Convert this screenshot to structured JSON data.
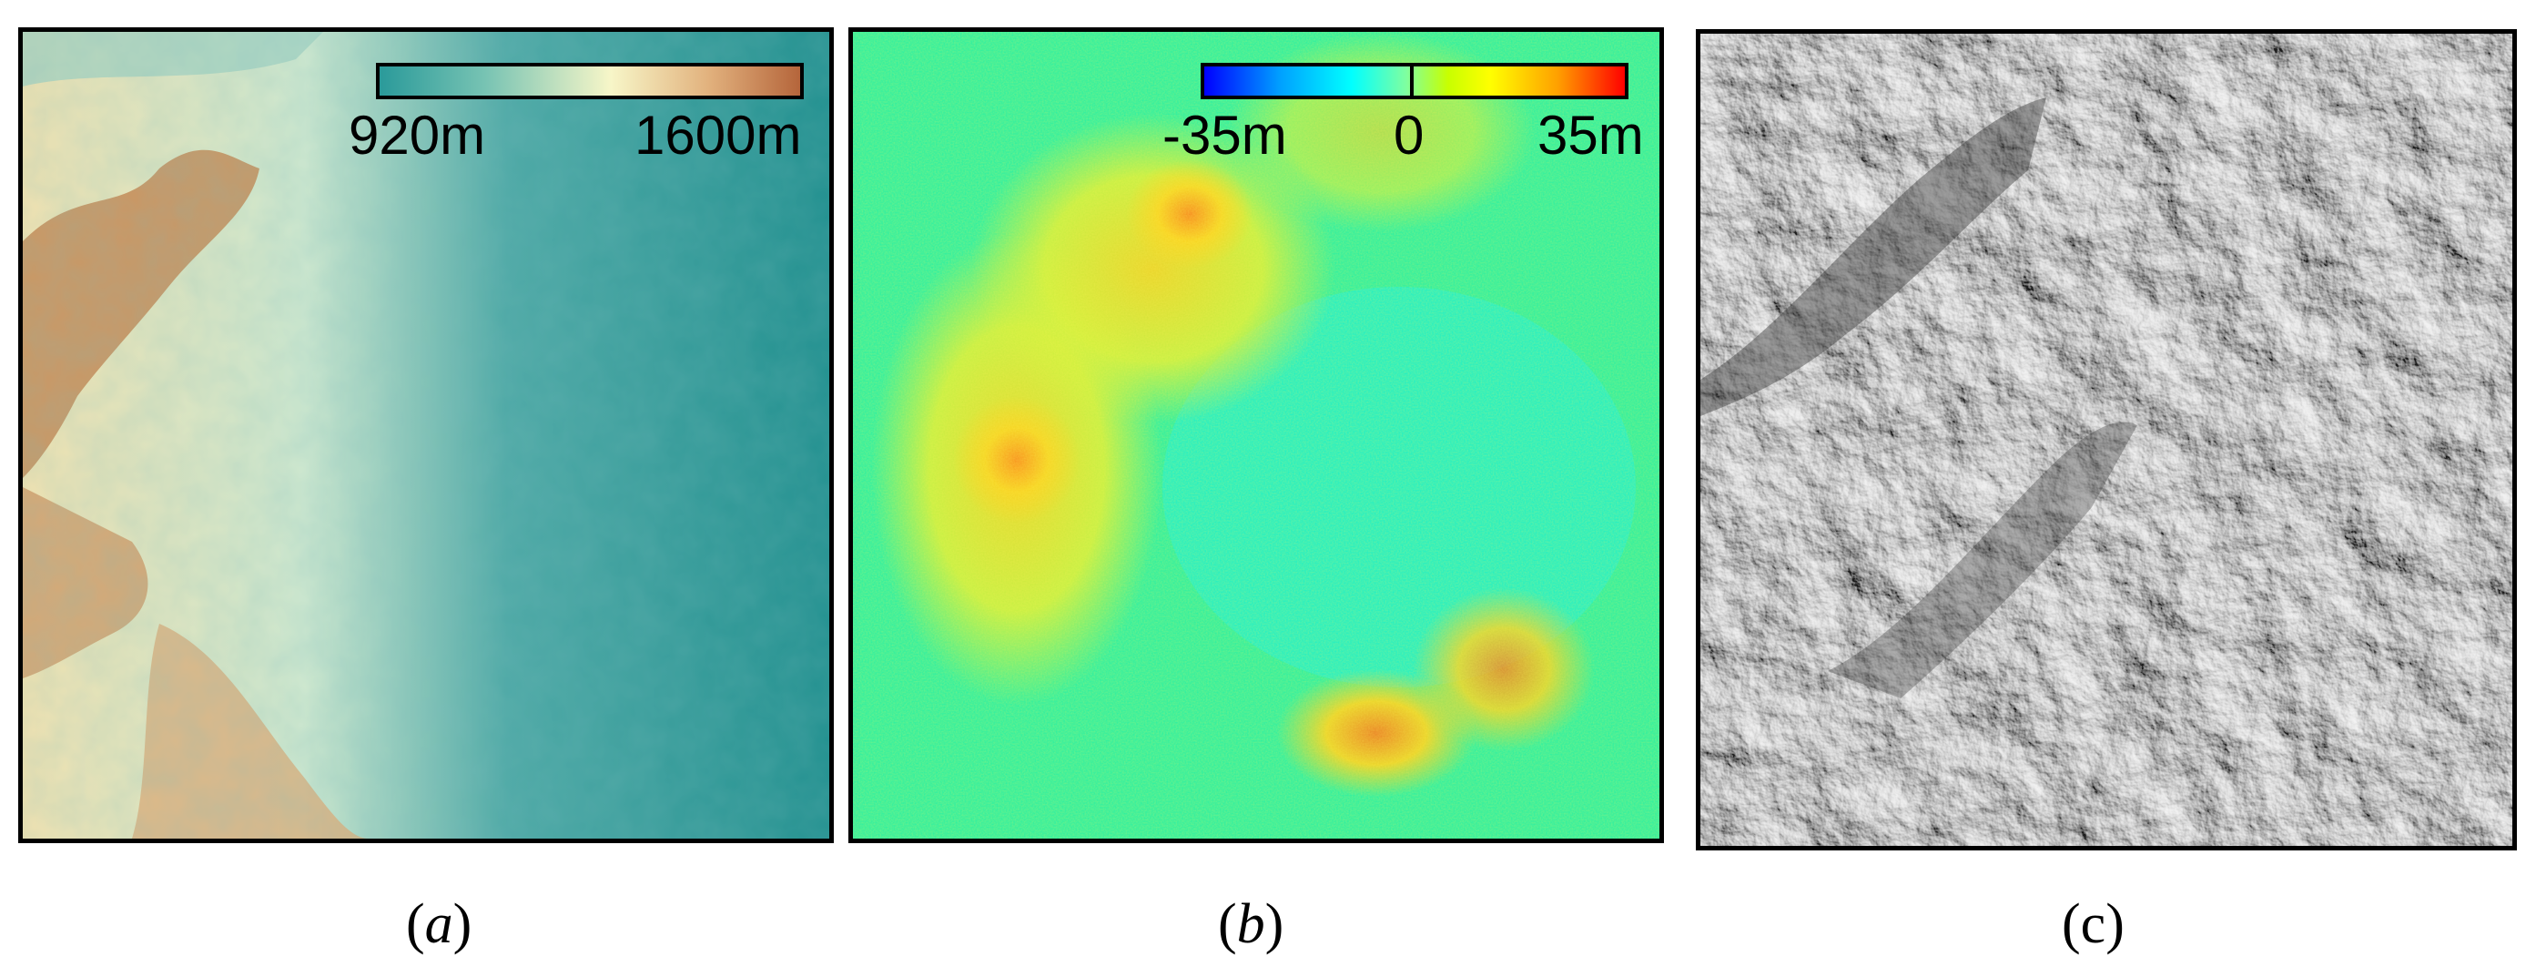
{
  "panels": [
    {
      "id": "a",
      "caption": {
        "open": "(",
        "letter": "a",
        "close": ")"
      },
      "colorbar": {
        "min_label": "920m",
        "max_label": "1600m",
        "colors": [
          "#2a9a9a",
          "#77c3b3",
          "#f7f6c8",
          "#e2b27e",
          "#b5653b"
        ]
      }
    },
    {
      "id": "b",
      "caption": {
        "open": "(",
        "letter": "b",
        "close": ")"
      },
      "colorbar": {
        "min_label": "-35m",
        "mid_label": "0",
        "max_label": "35m",
        "colors": [
          "#0000ff",
          "#00ffff",
          "#7fffa0",
          "#ffff00",
          "#ff0000"
        ]
      }
    },
    {
      "id": "c",
      "caption": {
        "open": "(",
        "letter": "c",
        "close": ")"
      }
    }
  ]
}
